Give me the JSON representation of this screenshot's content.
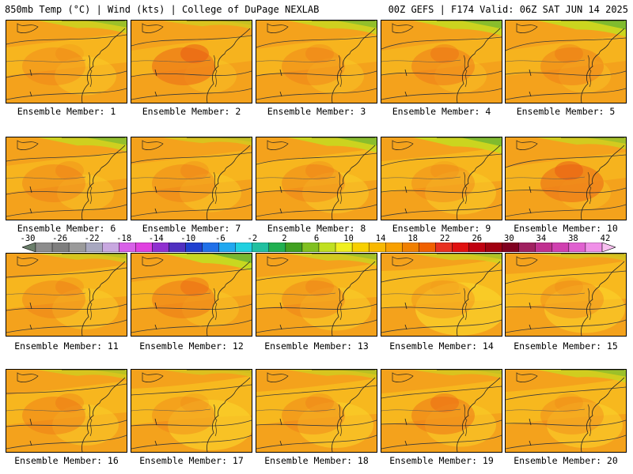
{
  "header": {
    "left": "850mb Temp (°C) | Wind (kts) | College of DuPage NEXLAB",
    "right": "00Z GEFS | F174 Valid: 06Z SAT JUN 14 2025"
  },
  "colorbar": {
    "labels": [
      "-30",
      "-26",
      "-22",
      "-18",
      "-14",
      "-10",
      "-6",
      "-2",
      "2",
      "6",
      "10",
      "14",
      "18",
      "22",
      "26",
      "30",
      "34",
      "38",
      "42"
    ],
    "colors": [
      "#6b7f6b",
      "#8c8c8c",
      "#7f7f7f",
      "#9a9a9a",
      "#a8a8c0",
      "#c8a8e0",
      "#d860e8",
      "#e040e0",
      "#9030d0",
      "#5030c0",
      "#2040d0",
      "#2070e8",
      "#20a8f0",
      "#20d0e0",
      "#20c0a0",
      "#20b050",
      "#40a020",
      "#80c020",
      "#c0e020",
      "#f0f020",
      "#f8d000",
      "#f8b800",
      "#f8a000",
      "#f08000",
      "#f06000",
      "#e83020",
      "#e01010",
      "#c00010",
      "#a00010",
      "#800020",
      "#a02060",
      "#c03090",
      "#d040b0",
      "#e060d0",
      "#f090e8",
      "#f8c0f0"
    ]
  },
  "members": [
    {
      "label": "Ensemble Member: 1"
    },
    {
      "label": "Ensemble Member: 2"
    },
    {
      "label": "Ensemble Member: 3"
    },
    {
      "label": "Ensemble Member: 4"
    },
    {
      "label": "Ensemble Member: 5"
    },
    {
      "label": "Ensemble Member: 6"
    },
    {
      "label": "Ensemble Member: 7"
    },
    {
      "label": "Ensemble Member: 8"
    },
    {
      "label": "Ensemble Member: 9"
    },
    {
      "label": "Ensemble Member: 10"
    },
    {
      "label": "Ensemble Member: 11"
    },
    {
      "label": "Ensemble Member: 12"
    },
    {
      "label": "Ensemble Member: 13"
    },
    {
      "label": "Ensemble Member: 14"
    },
    {
      "label": "Ensemble Member: 15"
    },
    {
      "label": "Ensemble Member: 16"
    },
    {
      "label": "Ensemble Member: 17"
    },
    {
      "label": "Ensemble Member: 18"
    },
    {
      "label": "Ensemble Member: 19"
    },
    {
      "label": "Ensemble Member: 20"
    }
  ]
}
